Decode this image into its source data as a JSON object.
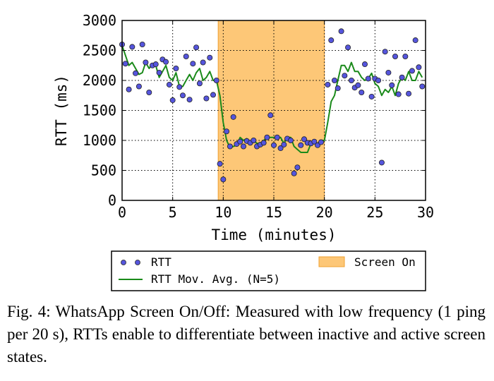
{
  "chart_data": {
    "type": "scatter",
    "title": "",
    "xlabel": "Time (minutes)",
    "ylabel": "RTT (ms)",
    "xlim": [
      0,
      30
    ],
    "ylim": [
      0,
      3000
    ],
    "xticks": [
      0,
      5,
      10,
      15,
      20,
      25,
      30
    ],
    "yticks": [
      0,
      500,
      1000,
      1500,
      2000,
      2500,
      3000
    ],
    "grid": true,
    "legend_position": "below",
    "shaded_regions": [
      {
        "name": "Screen On",
        "x0": 9.5,
        "x1": 20,
        "color": "#fdc777"
      }
    ],
    "series": [
      {
        "name": "RTT",
        "kind": "scatter",
        "color": "#5555dd",
        "points": [
          [
            0.0,
            2600
          ],
          [
            0.33,
            2280
          ],
          [
            0.67,
            1850
          ],
          [
            1.0,
            2560
          ],
          [
            1.33,
            2120
          ],
          [
            1.67,
            1900
          ],
          [
            2.0,
            2600
          ],
          [
            2.33,
            2300
          ],
          [
            2.67,
            1800
          ],
          [
            3.0,
            2250
          ],
          [
            3.33,
            2270
          ],
          [
            3.67,
            2130
          ],
          [
            4.0,
            2350
          ],
          [
            4.33,
            2310
          ],
          [
            4.67,
            1930
          ],
          [
            5.0,
            1670
          ],
          [
            5.33,
            2200
          ],
          [
            5.67,
            1890
          ],
          [
            6.0,
            1750
          ],
          [
            6.33,
            2400
          ],
          [
            6.67,
            1680
          ],
          [
            7.0,
            2280
          ],
          [
            7.33,
            2550
          ],
          [
            7.67,
            1950
          ],
          [
            8.0,
            2300
          ],
          [
            8.33,
            1700
          ],
          [
            8.67,
            2380
          ],
          [
            9.0,
            1760
          ],
          [
            9.33,
            2000
          ],
          [
            9.67,
            610
          ],
          [
            10.0,
            350
          ],
          [
            10.33,
            1150
          ],
          [
            10.67,
            900
          ],
          [
            11.0,
            1390
          ],
          [
            11.33,
            940
          ],
          [
            11.67,
            980
          ],
          [
            12.0,
            900
          ],
          [
            12.33,
            990
          ],
          [
            12.67,
            960
          ],
          [
            13.0,
            1000
          ],
          [
            13.33,
            900
          ],
          [
            13.67,
            930
          ],
          [
            14.0,
            960
          ],
          [
            14.33,
            1050
          ],
          [
            14.67,
            1420
          ],
          [
            15.0,
            920
          ],
          [
            15.33,
            1050
          ],
          [
            15.67,
            870
          ],
          [
            16.0,
            930
          ],
          [
            16.33,
            1030
          ],
          [
            16.67,
            1000
          ],
          [
            17.0,
            450
          ],
          [
            17.33,
            550
          ],
          [
            17.67,
            920
          ],
          [
            18.0,
            1020
          ],
          [
            18.33,
            960
          ],
          [
            18.67,
            950
          ],
          [
            19.0,
            980
          ],
          [
            19.33,
            920
          ],
          [
            19.67,
            970
          ],
          [
            20.33,
            1930
          ],
          [
            20.67,
            2670
          ],
          [
            21.0,
            2000
          ],
          [
            21.33,
            1870
          ],
          [
            21.67,
            2820
          ],
          [
            22.0,
            2080
          ],
          [
            22.33,
            2550
          ],
          [
            22.67,
            2000
          ],
          [
            23.0,
            1880
          ],
          [
            23.33,
            1920
          ],
          [
            23.67,
            1800
          ],
          [
            24.0,
            2270
          ],
          [
            24.33,
            2030
          ],
          [
            24.67,
            1730
          ],
          [
            25.0,
            2030
          ],
          [
            25.33,
            2000
          ],
          [
            25.67,
            630
          ],
          [
            26.0,
            2480
          ],
          [
            26.33,
            2130
          ],
          [
            26.67,
            1920
          ],
          [
            27.0,
            2400
          ],
          [
            27.33,
            1770
          ],
          [
            27.67,
            2050
          ],
          [
            28.0,
            2400
          ],
          [
            28.33,
            1780
          ],
          [
            28.67,
            2160
          ],
          [
            29.0,
            2670
          ],
          [
            29.33,
            2220
          ],
          [
            29.67,
            1900
          ]
        ]
      },
      {
        "name": "RTT Mov. Avg. (N=5)",
        "kind": "line",
        "color": "#1a8a1a",
        "points": [
          [
            0.0,
            2580
          ],
          [
            0.33,
            2420
          ],
          [
            0.67,
            2250
          ],
          [
            1.0,
            2300
          ],
          [
            1.33,
            2200
          ],
          [
            1.67,
            2100
          ],
          [
            2.0,
            2130
          ],
          [
            2.33,
            2300
          ],
          [
            2.67,
            2200
          ],
          [
            3.0,
            2280
          ],
          [
            3.33,
            2250
          ],
          [
            3.67,
            2050
          ],
          [
            4.0,
            2150
          ],
          [
            4.33,
            2250
          ],
          [
            4.67,
            2050
          ],
          [
            5.0,
            2000
          ],
          [
            5.33,
            2130
          ],
          [
            5.67,
            1900
          ],
          [
            6.0,
            1900
          ],
          [
            6.33,
            2000
          ],
          [
            6.67,
            2100
          ],
          [
            7.0,
            2000
          ],
          [
            7.33,
            2130
          ],
          [
            7.67,
            2200
          ],
          [
            8.0,
            2000
          ],
          [
            8.33,
            2050
          ],
          [
            8.67,
            2150
          ],
          [
            9.0,
            2000
          ],
          [
            9.33,
            2000
          ],
          [
            9.67,
            1750
          ],
          [
            10.0,
            1300
          ],
          [
            10.33,
            1000
          ],
          [
            10.67,
            880
          ],
          [
            11.0,
            900
          ],
          [
            11.33,
            920
          ],
          [
            11.67,
            1050
          ],
          [
            12.0,
            1000
          ],
          [
            12.33,
            1030
          ],
          [
            12.67,
            950
          ],
          [
            13.0,
            1000
          ],
          [
            13.33,
            950
          ],
          [
            13.67,
            950
          ],
          [
            14.0,
            1000
          ],
          [
            14.33,
            1050
          ],
          [
            14.67,
            1050
          ],
          [
            15.0,
            1050
          ],
          [
            15.33,
            1050
          ],
          [
            15.67,
            1050
          ],
          [
            16.0,
            950
          ],
          [
            16.33,
            1050
          ],
          [
            16.67,
            1050
          ],
          [
            17.0,
            900
          ],
          [
            17.33,
            850
          ],
          [
            17.67,
            800
          ],
          [
            18.0,
            800
          ],
          [
            18.33,
            800
          ],
          [
            18.67,
            950
          ],
          [
            19.0,
            950
          ],
          [
            19.33,
            950
          ],
          [
            19.67,
            1000
          ],
          [
            20.0,
            1000
          ],
          [
            20.33,
            1300
          ],
          [
            20.67,
            1650
          ],
          [
            21.0,
            1750
          ],
          [
            21.33,
            2000
          ],
          [
            21.67,
            2250
          ],
          [
            22.0,
            2250
          ],
          [
            22.33,
            2150
          ],
          [
            22.67,
            2300
          ],
          [
            23.0,
            2150
          ],
          [
            23.33,
            2150
          ],
          [
            23.67,
            2050
          ],
          [
            24.0,
            2000
          ],
          [
            24.33,
            2030
          ],
          [
            24.67,
            2120
          ],
          [
            25.0,
            1950
          ],
          [
            25.33,
            1900
          ],
          [
            25.67,
            1750
          ],
          [
            26.0,
            1850
          ],
          [
            26.33,
            1800
          ],
          [
            26.67,
            1900
          ],
          [
            27.0,
            1750
          ],
          [
            27.33,
            1950
          ],
          [
            27.67,
            2050
          ],
          [
            28.0,
            2000
          ],
          [
            28.33,
            2150
          ],
          [
            28.67,
            2000
          ],
          [
            29.0,
            2000
          ],
          [
            29.33,
            2150
          ],
          [
            29.67,
            2050
          ]
        ]
      }
    ]
  },
  "legend": {
    "rtt_label": "RTT",
    "avg_label": "RTT Mov. Avg. (N=5)",
    "screen_on_label": "Screen On"
  },
  "caption": {
    "text": "Fig. 4: WhatsApp Screen On/Off: Measured with low frequency (1 ping per 20 s), RTTs enable to differentiate between inactive and active screen states."
  }
}
